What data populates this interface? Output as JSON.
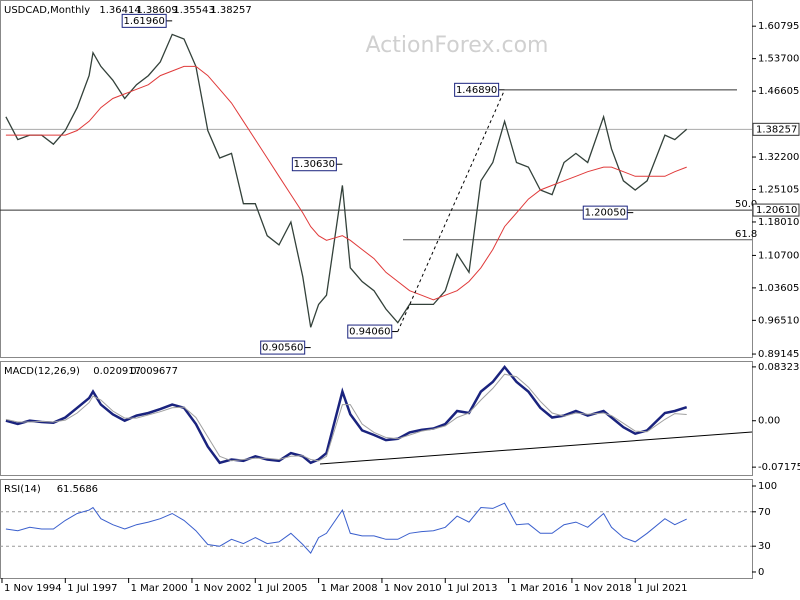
{
  "watermark": "ActionForex.com",
  "chart_data": [
    {
      "type": "line",
      "title": "USDCAD,Monthly",
      "ohlc": [
        1.36414,
        1.38609,
        1.35543,
        1.38257
      ],
      "x": [
        "1995-01",
        "1995-07",
        "1996-01",
        "1996-07",
        "1997-01",
        "1997-07",
        "1998-01",
        "1998-07",
        "1998-09",
        "1999-01",
        "1999-07",
        "2000-01",
        "2000-07",
        "2001-01",
        "2001-07",
        "2002-01",
        "2002-07",
        "2003-01",
        "2003-07",
        "2004-01",
        "2004-07",
        "2005-01",
        "2005-07",
        "2006-01",
        "2006-07",
        "2007-01",
        "2007-07",
        "2007-11",
        "2008-03",
        "2008-07",
        "2009-03",
        "2009-07",
        "2010-01",
        "2010-07",
        "2011-01",
        "2011-07",
        "2012-01",
        "2012-07",
        "2013-01",
        "2013-07",
        "2014-01",
        "2014-07",
        "2015-01",
        "2015-07",
        "2016-01",
        "2016-07",
        "2017-01",
        "2017-07",
        "2018-01",
        "2018-07",
        "2019-01",
        "2019-07",
        "2020-03",
        "2020-07",
        "2021-01",
        "2021-07",
        "2022-01",
        "2022-10",
        "2023-03",
        "2023-09"
      ],
      "series": [
        {
          "color": "#33413a",
          "values": [
            1.41,
            1.36,
            1.37,
            1.37,
            1.35,
            1.38,
            1.43,
            1.5,
            1.55,
            1.52,
            1.49,
            1.45,
            1.48,
            1.5,
            1.53,
            1.59,
            1.58,
            1.52,
            1.38,
            1.32,
            1.33,
            1.22,
            1.22,
            1.15,
            1.13,
            1.18,
            1.06,
            0.95,
            1.0,
            1.02,
            1.26,
            1.08,
            1.05,
            1.03,
            0.99,
            0.96,
            1.0,
            1.0,
            1.0,
            1.03,
            1.11,
            1.07,
            1.27,
            1.31,
            1.4,
            1.31,
            1.3,
            1.25,
            1.24,
            1.31,
            1.33,
            1.31,
            1.41,
            1.34,
            1.27,
            1.25,
            1.27,
            1.37,
            1.36,
            1.38257
          ]
        },
        {
          "color": "#e03a3a",
          "values": [
            1.37,
            1.37,
            1.37,
            1.37,
            1.37,
            1.37,
            1.38,
            1.4,
            1.41,
            1.43,
            1.45,
            1.46,
            1.47,
            1.48,
            1.5,
            1.51,
            1.52,
            1.52,
            1.5,
            1.47,
            1.44,
            1.4,
            1.36,
            1.32,
            1.28,
            1.24,
            1.2,
            1.17,
            1.15,
            1.14,
            1.15,
            1.14,
            1.12,
            1.1,
            1.07,
            1.05,
            1.03,
            1.02,
            1.01,
            1.02,
            1.03,
            1.05,
            1.08,
            1.12,
            1.17,
            1.2,
            1.23,
            1.25,
            1.26,
            1.27,
            1.28,
            1.29,
            1.3,
            1.3,
            1.29,
            1.28,
            1.28,
            1.28,
            1.29,
            1.3
          ]
        }
      ],
      "xlim": [
        "1994-10",
        "2026-06"
      ],
      "ylim": [
        0.885,
        1.663
      ],
      "yticks": [
        {
          "value": 1.60795,
          "label": "1.60795"
        },
        {
          "value": 1.537,
          "label": "1.53700"
        },
        {
          "value": 1.46605,
          "label": "1.46605"
        },
        {
          "value": 1.322,
          "label": "1.32200"
        },
        {
          "value": 1.25105,
          "label": "1.25105"
        },
        {
          "value": 1.1801,
          "label": "1.18010"
        },
        {
          "value": 1.107,
          "label": "1.10700"
        },
        {
          "value": 1.03605,
          "label": "1.03605"
        },
        {
          "value": 0.9651,
          "label": "0.96510"
        },
        {
          "value": 0.89145,
          "label": "0.89145"
        }
      ],
      "last": 1.38257,
      "levels": [
        {
          "label": "50.0",
          "value": 1.2061,
          "value_label": "1.20610"
        },
        {
          "label": "61.8",
          "value": 1.1412
        }
      ],
      "annotations": [
        {
          "x": "2002-01",
          "value": 1.6196,
          "label": "1.61960"
        },
        {
          "x": "2009-03",
          "value": 1.3063,
          "label": "1.30630"
        },
        {
          "x": "2007-11",
          "value": 0.9056,
          "label": "0.90560"
        },
        {
          "x": "2011-07",
          "value": 0.9406,
          "label": "0.94060"
        },
        {
          "x": "2016-01",
          "value": 1.4689,
          "label": "1.46890"
        },
        {
          "x": "2021-06",
          "value": 1.2005,
          "label": "1.20050"
        }
      ]
    },
    {
      "type": "line",
      "title": "MACD(12,26,9)",
      "readout": [
        0.020917,
        0.009677
      ],
      "x": [
        "1995-01",
        "1995-07",
        "1996-01",
        "1996-07",
        "1997-01",
        "1997-07",
        "1998-01",
        "1998-07",
        "1998-09",
        "1999-01",
        "1999-07",
        "2000-01",
        "2000-07",
        "2001-01",
        "2001-07",
        "2002-01",
        "2002-07",
        "2003-01",
        "2003-07",
        "2004-01",
        "2004-07",
        "2005-01",
        "2005-07",
        "2006-01",
        "2006-07",
        "2007-01",
        "2007-07",
        "2007-11",
        "2008-03",
        "2008-07",
        "2009-03",
        "2009-07",
        "2010-01",
        "2010-07",
        "2011-01",
        "2011-07",
        "2012-01",
        "2012-07",
        "2013-01",
        "2013-07",
        "2014-01",
        "2014-07",
        "2015-01",
        "2015-07",
        "2016-01",
        "2016-07",
        "2017-01",
        "2017-07",
        "2018-01",
        "2018-07",
        "2019-01",
        "2019-07",
        "2020-03",
        "2020-07",
        "2021-01",
        "2021-07",
        "2022-01",
        "2022-10",
        "2023-03",
        "2023-09"
      ],
      "series": [
        {
          "color": "#1a237e",
          "values": [
            0,
            -0.005,
            0,
            -0.002,
            -0.003,
            0.005,
            0.02,
            0.035,
            0.045,
            0.025,
            0.01,
            0,
            0.008,
            0.012,
            0.018,
            0.025,
            0.02,
            -0.005,
            -0.04,
            -0.065,
            -0.06,
            -0.062,
            -0.055,
            -0.06,
            -0.062,
            -0.05,
            -0.055,
            -0.065,
            -0.06,
            -0.05,
            0.045,
            0.01,
            -0.015,
            -0.022,
            -0.03,
            -0.028,
            -0.018,
            -0.014,
            -0.012,
            -0.005,
            0.015,
            0.012,
            0.045,
            0.06,
            0.083,
            0.06,
            0.045,
            0.02,
            0.005,
            0.008,
            0.015,
            0.008,
            0.015,
            0.005,
            -0.01,
            -0.02,
            -0.015,
            0.012,
            0.015,
            0.020917
          ]
        },
        {
          "color": "#a0a0a0",
          "values": [
            0.002,
            -0.002,
            -0.002,
            -0.001,
            -0.002,
            0.001,
            0.012,
            0.028,
            0.038,
            0.032,
            0.015,
            0.004,
            0.004,
            0.009,
            0.014,
            0.02,
            0.021,
            0.005,
            -0.025,
            -0.055,
            -0.062,
            -0.06,
            -0.058,
            -0.058,
            -0.06,
            -0.055,
            -0.054,
            -0.06,
            -0.062,
            -0.055,
            0.025,
            0.025,
            -0.005,
            -0.018,
            -0.026,
            -0.028,
            -0.022,
            -0.016,
            -0.013,
            -0.008,
            0.005,
            0.012,
            0.032,
            0.05,
            0.072,
            0.068,
            0.052,
            0.03,
            0.012,
            0.007,
            0.012,
            0.01,
            0.012,
            0.008,
            -0.004,
            -0.016,
            -0.017,
            0.002,
            0.011,
            0.009677
          ]
        }
      ],
      "xlim": [
        "1994-10",
        "2026-06"
      ],
      "ylim": [
        -0.0839,
        0.0908
      ],
      "yticks": [
        0.083235,
        {
          "value": 0,
          "label": "0.00"
        },
        -0.071752
      ]
    },
    {
      "type": "line",
      "title": "RSI(14)",
      "readout": [
        61.5686
      ],
      "x": [
        "1995-01",
        "1995-07",
        "1996-01",
        "1996-07",
        "1997-01",
        "1997-07",
        "1998-01",
        "1998-07",
        "1998-09",
        "1999-01",
        "1999-07",
        "2000-01",
        "2000-07",
        "2001-01",
        "2001-07",
        "2002-01",
        "2002-07",
        "2003-01",
        "2003-07",
        "2004-01",
        "2004-07",
        "2005-01",
        "2005-07",
        "2006-01",
        "2006-07",
        "2007-01",
        "2007-07",
        "2007-11",
        "2008-03",
        "2008-07",
        "2009-03",
        "2009-07",
        "2010-01",
        "2010-07",
        "2011-01",
        "2011-07",
        "2012-01",
        "2012-07",
        "2013-01",
        "2013-07",
        "2014-01",
        "2014-07",
        "2015-01",
        "2015-07",
        "2016-01",
        "2016-07",
        "2017-01",
        "2017-07",
        "2018-01",
        "2018-07",
        "2019-01",
        "2019-07",
        "2020-03",
        "2020-07",
        "2021-01",
        "2021-07",
        "2022-01",
        "2022-10",
        "2023-03",
        "2023-09"
      ],
      "series": [
        {
          "color": "#3a5fcd",
          "values": [
            50,
            48,
            52,
            50,
            50,
            60,
            68,
            72,
            75,
            62,
            55,
            50,
            55,
            58,
            62,
            68,
            60,
            48,
            32,
            30,
            38,
            33,
            40,
            33,
            35,
            45,
            32,
            22,
            40,
            45,
            72,
            45,
            42,
            42,
            38,
            38,
            45,
            47,
            48,
            52,
            65,
            58,
            75,
            74,
            80,
            55,
            56,
            45,
            45,
            55,
            58,
            52,
            68,
            52,
            40,
            35,
            45,
            62,
            55,
            61.5686
          ]
        }
      ],
      "xlim": [
        "1994-10",
        "2026-06"
      ],
      "ylim": [
        -7,
        107
      ],
      "yticks": [
        100,
        70,
        30,
        0
      ],
      "guides": [
        70,
        30
      ],
      "xticks": [
        {
          "value": "1994-11",
          "label": "1 Nov 1994"
        },
        {
          "value": "1997-07",
          "label": "1 Jul 1997"
        },
        {
          "value": "2000-03",
          "label": "1 Mar 2000"
        },
        {
          "value": "2002-11",
          "label": "1 Nov 2002"
        },
        {
          "value": "2005-07",
          "label": "1 Jul 2005"
        },
        {
          "value": "2008-03",
          "label": "1 Mar 2008"
        },
        {
          "value": "2010-11",
          "label": "1 Nov 2010"
        },
        {
          "value": "2013-07",
          "label": "1 Jul 2013"
        },
        {
          "value": "2016-03",
          "label": "1 Mar 2016"
        },
        {
          "value": "2018-11",
          "label": "1 Nov 2018"
        },
        {
          "value": "2021-07",
          "label": "1 Jul 2021"
        }
      ]
    }
  ]
}
